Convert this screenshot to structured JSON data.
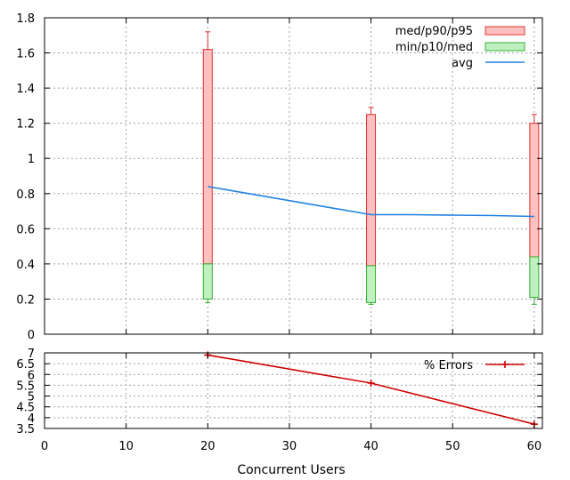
{
  "chart_data": [
    {
      "type": "box",
      "title": "",
      "xlabel": "Concurrent Users",
      "ylabel": "",
      "xlim": [
        0,
        61
      ],
      "ylim": [
        0,
        1.8
      ],
      "grid": true,
      "legend_position": "top-right",
      "x_ticks": [
        "0",
        "10",
        "20",
        "30",
        "40",
        "50",
        "60"
      ],
      "y_ticks": [
        "0",
        "0.2",
        "0.4",
        "0.6",
        "0.8",
        "1",
        "1.2",
        "1.4",
        "1.6",
        "1.8"
      ],
      "legend": [
        {
          "label": "med/p90/p95",
          "color": "#ffc0c0",
          "stroke": "#e03030"
        },
        {
          "label": "min/p10/med",
          "color": "#c0f0c0",
          "stroke": "#30b030"
        },
        {
          "label": "avg",
          "color": "#2080e0"
        }
      ],
      "boxes": [
        {
          "x": 20,
          "min": 0.18,
          "p10": 0.2,
          "med": 0.4,
          "p90": 1.62,
          "p95": 1.72
        },
        {
          "x": 40,
          "min": 0.17,
          "p10": 0.18,
          "med": 0.39,
          "p90": 1.25,
          "p95": 1.29
        },
        {
          "x": 60,
          "min": 0.17,
          "p10": 0.21,
          "med": 0.44,
          "p90": 1.2,
          "p95": 1.25
        }
      ],
      "avg_line": {
        "name": "avg",
        "x": [
          20,
          40,
          45,
          55,
          60
        ],
        "y": [
          0.84,
          0.68,
          0.68,
          0.675,
          0.67
        ]
      }
    },
    {
      "type": "line",
      "xlabel": "Concurrent Users",
      "xlim": [
        0,
        61
      ],
      "ylim": [
        3.5,
        7
      ],
      "grid": true,
      "legend_position": "top-right",
      "x_ticks": [
        "0",
        "10",
        "20",
        "30",
        "40",
        "50",
        "60"
      ],
      "y_ticks": [
        "3.5",
        "4",
        "4.5",
        "5",
        "5.5",
        "6",
        "6.5",
        "7"
      ],
      "series": [
        {
          "name": "% Errors",
          "color": "#d00000",
          "x": [
            20,
            40,
            60
          ],
          "y": [
            6.9,
            5.6,
            3.7
          ]
        }
      ]
    }
  ]
}
